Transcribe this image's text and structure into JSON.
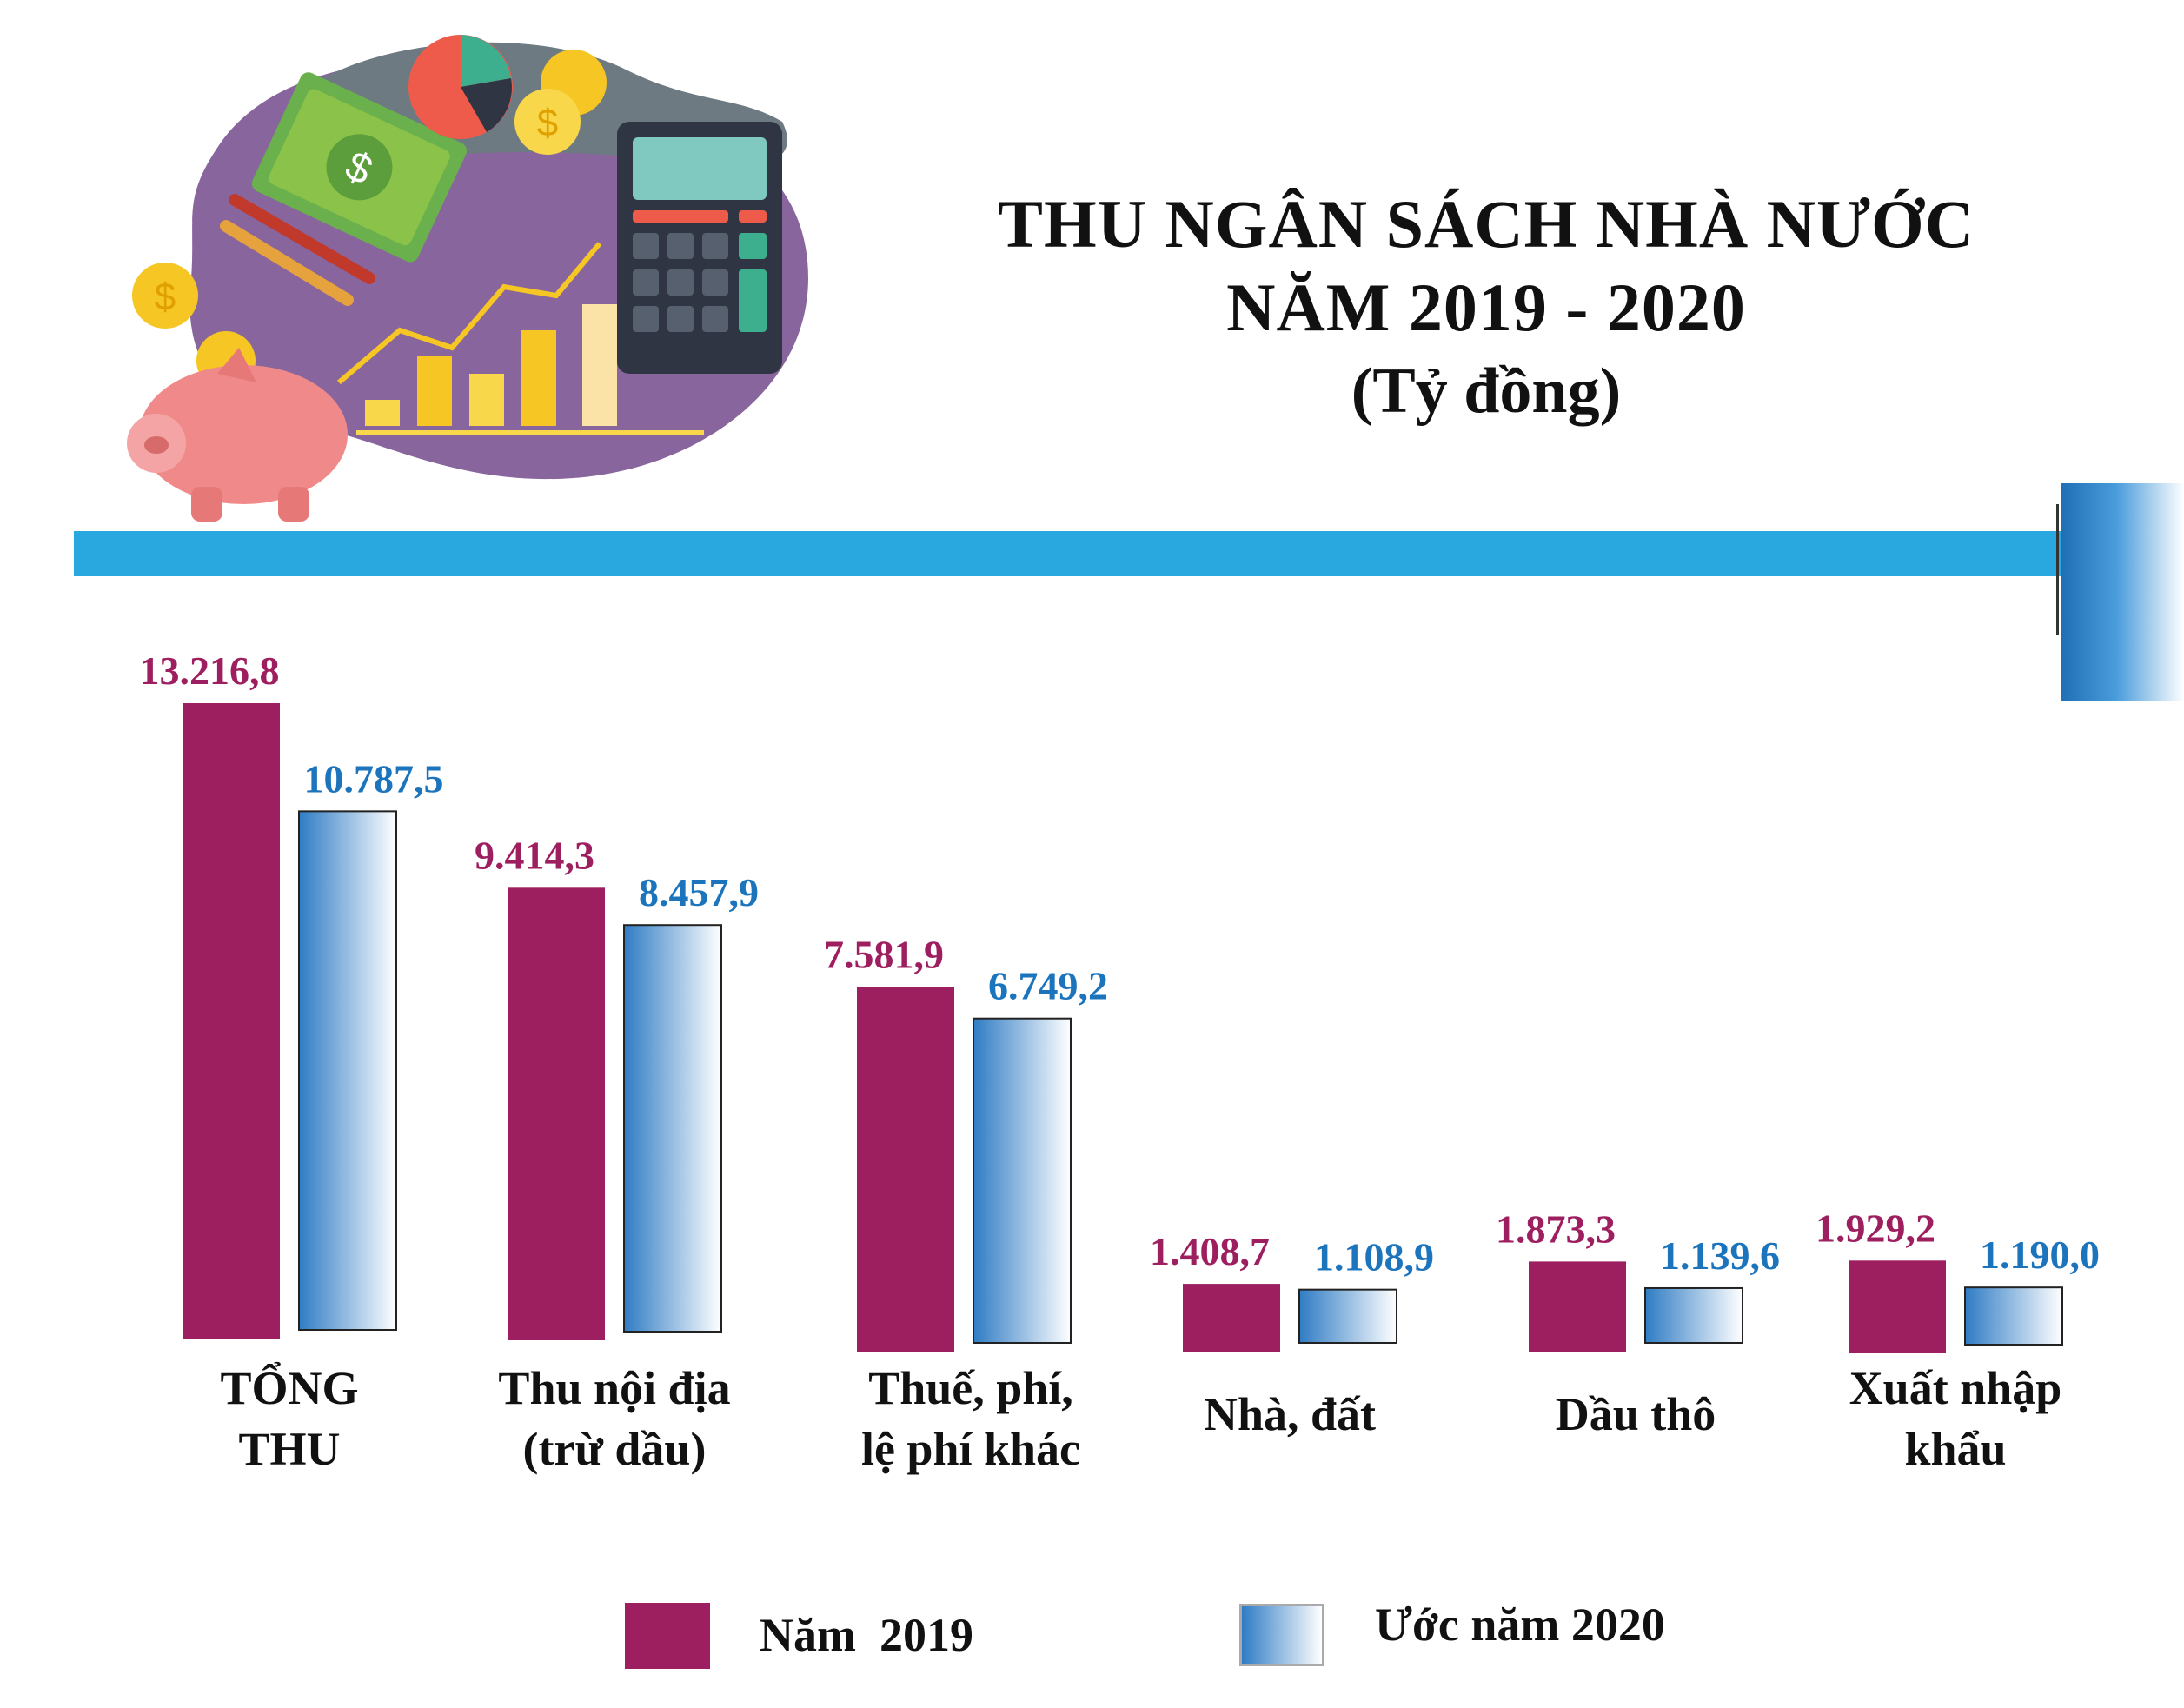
{
  "title": {
    "line1": "THU NGÂN SÁCH NHÀ NƯỚC",
    "line2": "NĂM 2019 - 2020",
    "unit": "(Tỷ đồng)"
  },
  "colors": {
    "series_2019": "#9e1f5f",
    "series_2020_dark": "#2f7cc4",
    "series_2020_light": "#ffffff",
    "label_2019": "#9e1f5f",
    "label_2020": "#1c75bc",
    "accent_band": "#29a8df"
  },
  "legend": {
    "label_2019": "Năm  2019",
    "label_2020": "Ước năm 2020"
  },
  "chart_data": {
    "type": "bar",
    "categories": [
      [
        "TỔNG",
        "THU"
      ],
      [
        "Thu nội địa",
        "(trừ dầu)"
      ],
      [
        "Thuế, phí,",
        "lệ phí khác"
      ],
      [
        "Nhà, đất"
      ],
      [
        "Dầu thô"
      ],
      [
        "Xuất nhập",
        "khẩu"
      ]
    ],
    "series": [
      {
        "name": "Năm  2019",
        "values": [
          13216.8,
          9414.3,
          7581.9,
          1408.7,
          1873.3,
          1929.2
        ],
        "labels": [
          "13.216,8",
          "9.414,3",
          "7.581,9",
          "1.408,7",
          "1.873,3",
          "1.929,2"
        ]
      },
      {
        "name": "Ước năm 2020",
        "values": [
          10787.5,
          8457.9,
          6749.2,
          1108.9,
          1139.6,
          1190.0
        ],
        "labels": [
          "10.787,5",
          "8.457,9",
          "6.749,2",
          "1.108,9",
          "1.139,6",
          "1.190,0"
        ]
      }
    ],
    "ylim": [
      0,
      14000
    ],
    "grid": false,
    "legend_position": "bottom"
  }
}
